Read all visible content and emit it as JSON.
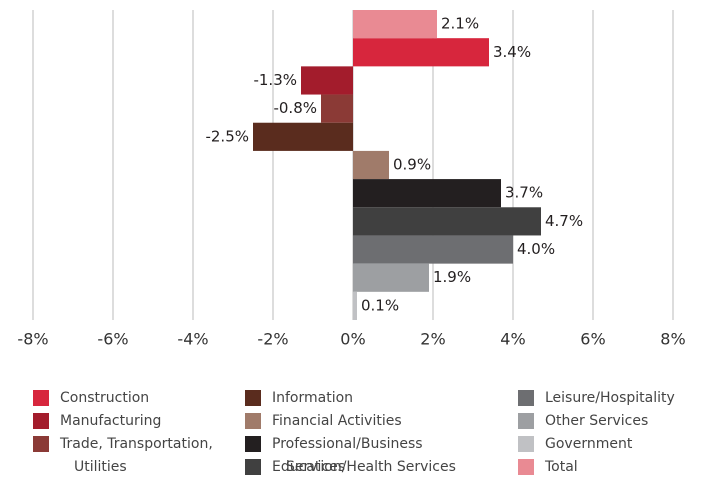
{
  "chart_data": {
    "type": "bar",
    "orientation": "horizontal",
    "categories": [
      "Construction",
      "Manufacturing",
      "Trade, Transportation, Utilities",
      "Information",
      "Financial Activities",
      "Professional/Business Services",
      "Education/Health Services",
      "Leisure/Hospitality",
      "Other Services",
      "Government",
      "Total"
    ],
    "values": [
      3.4,
      -1.3,
      -0.8,
      -2.5,
      0.9,
      3.7,
      4.7,
      4.0,
      1.9,
      0.1,
      2.1
    ],
    "value_labels": [
      "3.4%",
      "-1.3%",
      "-0.8%",
      "-2.5%",
      "0.9%",
      "3.7%",
      "4.7%",
      "4.0%",
      "1.9%",
      "0.1%",
      "2.1%"
    ],
    "colors": [
      "#d7263d",
      "#a31c2c",
      "#8b3a36",
      "#5a2c1e",
      "#a07b6a",
      "#231f20",
      "#404040",
      "#6d6e71",
      "#9d9fa2",
      "#c0c1c4",
      "#e98a93"
    ],
    "xlim": [
      -8,
      8
    ],
    "xticks": [
      {
        "value": -8,
        "label": "-8%"
      },
      {
        "value": -6,
        "label": "-6%"
      },
      {
        "value": -4,
        "label": "-4%"
      },
      {
        "value": -2,
        "label": "-2%"
      },
      {
        "value": 0,
        "label": "0%"
      },
      {
        "value": 2,
        "label": "2%"
      },
      {
        "value": 4,
        "label": "4%"
      },
      {
        "value": 6,
        "label": "6%"
      },
      {
        "value": 8,
        "label": "8%"
      }
    ],
    "grid": true
  }
}
